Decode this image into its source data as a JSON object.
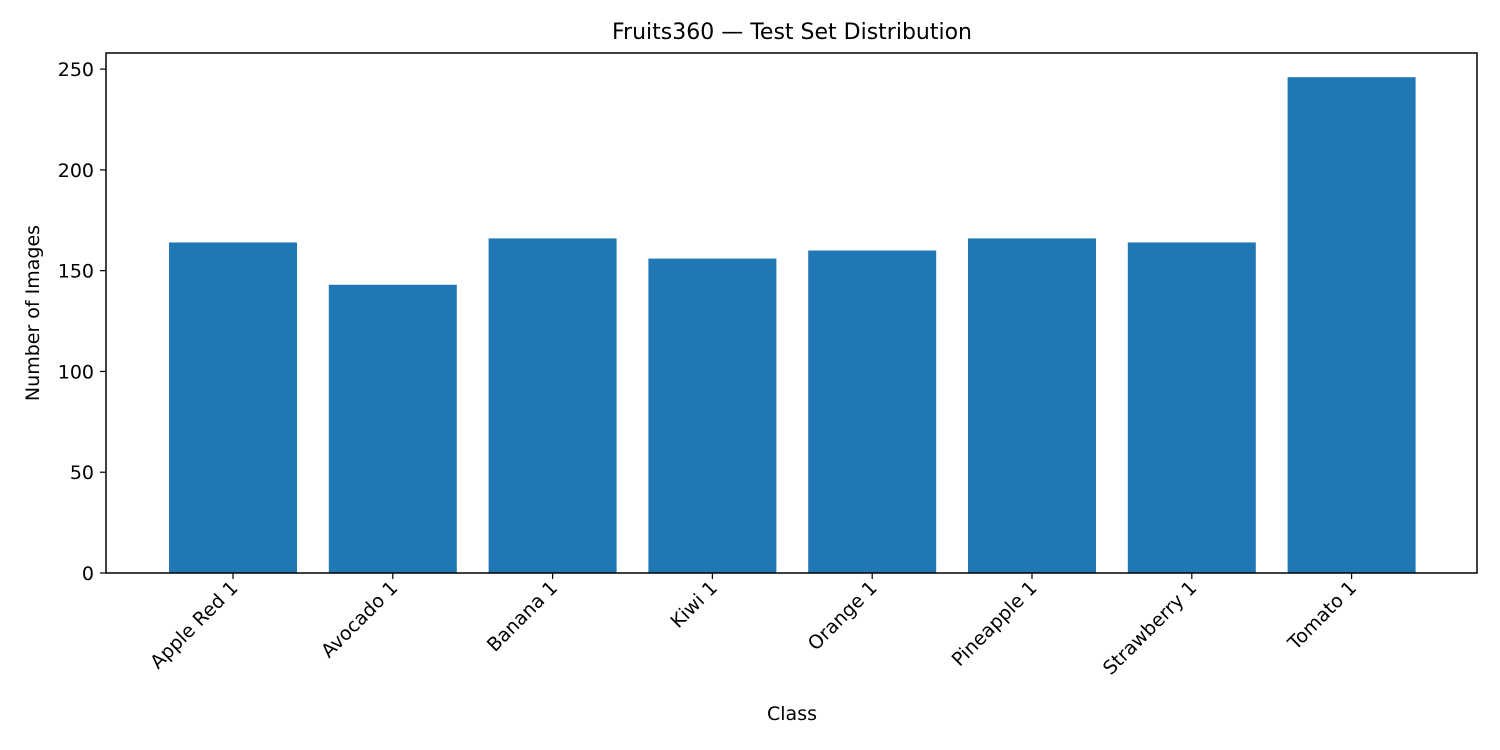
{
  "chart_data": {
    "type": "bar",
    "title": "Fruits360 — Test Set Distribution",
    "xlabel": "Class",
    "ylabel": "Number of Images",
    "categories": [
      "Apple Red 1",
      "Avocado 1",
      "Banana 1",
      "Kiwi 1",
      "Orange 1",
      "Pineapple 1",
      "Strawberry 1",
      "Tomato 1"
    ],
    "values": [
      164,
      143,
      166,
      156,
      160,
      166,
      164,
      246
    ],
    "ylim": [
      0,
      258
    ],
    "yticks": [
      0,
      50,
      100,
      150,
      200,
      250
    ],
    "bar_color": "#1f77b4",
    "grid": false,
    "legend": "none"
  }
}
